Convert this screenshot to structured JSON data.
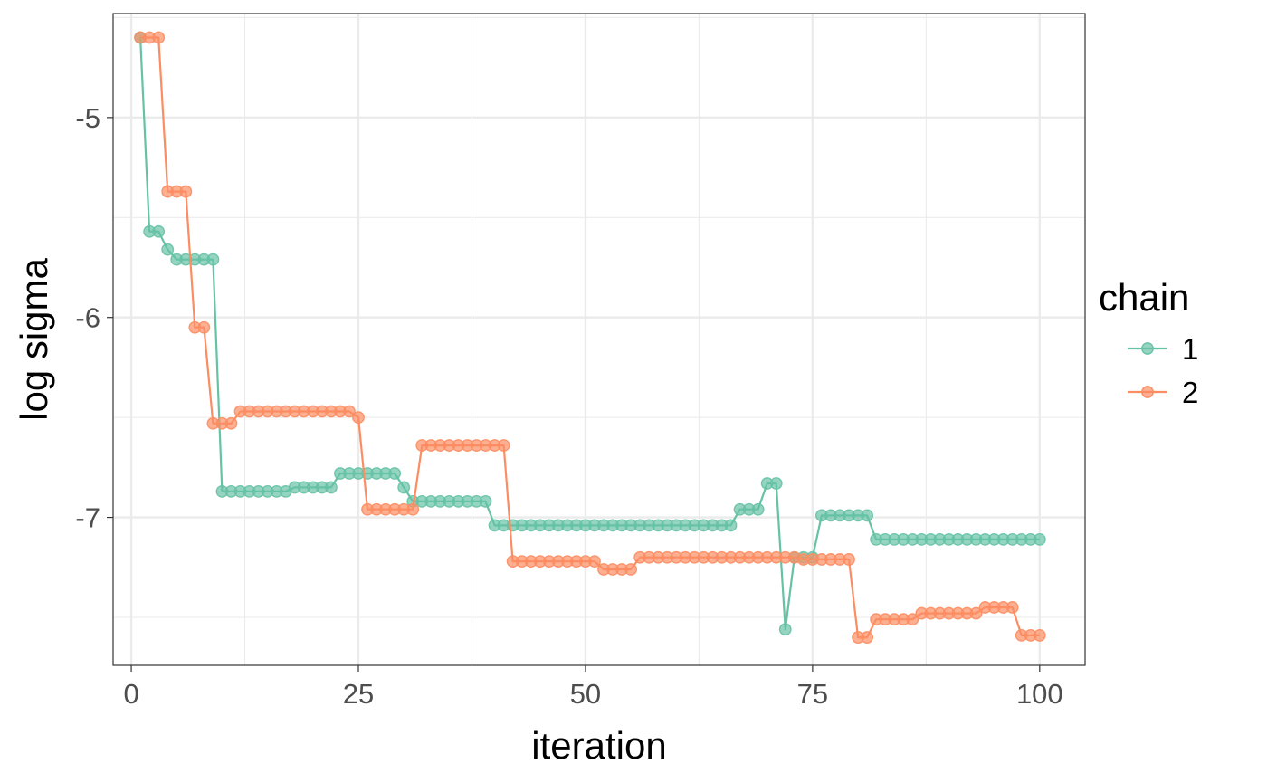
{
  "chart_data": {
    "type": "line",
    "xlabel": "iteration",
    "ylabel": "log sigma",
    "xlim": [
      -2,
      105
    ],
    "ylim": [
      -7.74,
      -4.48
    ],
    "x_ticks": [
      0,
      25,
      50,
      75,
      100
    ],
    "x_tick_labels": [
      "0",
      "25",
      "50",
      "75",
      "100"
    ],
    "y_ticks": [
      -5,
      -6,
      -7
    ],
    "y_tick_labels": [
      "-5",
      "-6",
      "-7"
    ],
    "grid": true,
    "legend": {
      "title": "chain",
      "position": "right"
    },
    "x": [
      1,
      2,
      3,
      4,
      5,
      6,
      7,
      8,
      9,
      10,
      11,
      12,
      13,
      14,
      15,
      16,
      17,
      18,
      19,
      20,
      21,
      22,
      23,
      24,
      25,
      26,
      27,
      28,
      29,
      30,
      31,
      32,
      33,
      34,
      35,
      36,
      37,
      38,
      39,
      40,
      41,
      42,
      43,
      44,
      45,
      46,
      47,
      48,
      49,
      50,
      51,
      52,
      53,
      54,
      55,
      56,
      57,
      58,
      59,
      60,
      61,
      62,
      63,
      64,
      65,
      66,
      67,
      68,
      69,
      70,
      71,
      72,
      73,
      74,
      75,
      76,
      77,
      78,
      79,
      80,
      81,
      82,
      83,
      84,
      85,
      86,
      87,
      88,
      89,
      90,
      91,
      92,
      93,
      94,
      95,
      96,
      97,
      98,
      99,
      100
    ],
    "series": [
      {
        "name": "1",
        "color": "#66c2a5",
        "values": [
          -4.6,
          -5.57,
          -5.57,
          -5.66,
          -5.71,
          -5.71,
          -5.71,
          -5.71,
          -5.71,
          -6.87,
          -6.87,
          -6.87,
          -6.87,
          -6.87,
          -6.87,
          -6.87,
          -6.87,
          -6.85,
          -6.85,
          -6.85,
          -6.85,
          -6.85,
          -6.78,
          -6.78,
          -6.78,
          -6.78,
          -6.78,
          -6.78,
          -6.78,
          -6.85,
          -6.92,
          -6.92,
          -6.92,
          -6.92,
          -6.92,
          -6.92,
          -6.92,
          -6.92,
          -6.92,
          -7.04,
          -7.04,
          -7.04,
          -7.04,
          -7.04,
          -7.04,
          -7.04,
          -7.04,
          -7.04,
          -7.04,
          -7.04,
          -7.04,
          -7.04,
          -7.04,
          -7.04,
          -7.04,
          -7.04,
          -7.04,
          -7.04,
          -7.04,
          -7.04,
          -7.04,
          -7.04,
          -7.04,
          -7.04,
          -7.04,
          -7.04,
          -6.96,
          -6.96,
          -6.96,
          -6.83,
          -6.83,
          -7.56,
          -7.2,
          -7.2,
          -7.2,
          -6.99,
          -6.99,
          -6.99,
          -6.99,
          -6.99,
          -6.99,
          -7.11,
          -7.11,
          -7.11,
          -7.11,
          -7.11,
          -7.11,
          -7.11,
          -7.11,
          -7.11,
          -7.11,
          -7.11,
          -7.11,
          -7.11,
          -7.11,
          -7.11,
          -7.11,
          -7.11,
          -7.11,
          -7.11
        ]
      },
      {
        "name": "2",
        "color": "#fc8d62",
        "values": [
          -4.6,
          -4.6,
          -4.6,
          -5.37,
          -5.37,
          -5.37,
          -6.05,
          -6.05,
          -6.53,
          -6.53,
          -6.53,
          -6.47,
          -6.47,
          -6.47,
          -6.47,
          -6.47,
          -6.47,
          -6.47,
          -6.47,
          -6.47,
          -6.47,
          -6.47,
          -6.47,
          -6.47,
          -6.5,
          -6.96,
          -6.96,
          -6.96,
          -6.96,
          -6.96,
          -6.96,
          -6.64,
          -6.64,
          -6.64,
          -6.64,
          -6.64,
          -6.64,
          -6.64,
          -6.64,
          -6.64,
          -6.64,
          -7.22,
          -7.22,
          -7.22,
          -7.22,
          -7.22,
          -7.22,
          -7.22,
          -7.22,
          -7.22,
          -7.22,
          -7.26,
          -7.26,
          -7.26,
          -7.26,
          -7.2,
          -7.2,
          -7.2,
          -7.2,
          -7.2,
          -7.2,
          -7.2,
          -7.2,
          -7.2,
          -7.2,
          -7.2,
          -7.2,
          -7.2,
          -7.2,
          -7.2,
          -7.2,
          -7.2,
          -7.2,
          -7.21,
          -7.21,
          -7.21,
          -7.21,
          -7.21,
          -7.21,
          -7.6,
          -7.6,
          -7.51,
          -7.51,
          -7.51,
          -7.51,
          -7.51,
          -7.48,
          -7.48,
          -7.48,
          -7.48,
          -7.48,
          -7.48,
          -7.48,
          -7.45,
          -7.45,
          -7.45,
          -7.45,
          -7.59,
          -7.59,
          -7.59
        ]
      }
    ]
  }
}
